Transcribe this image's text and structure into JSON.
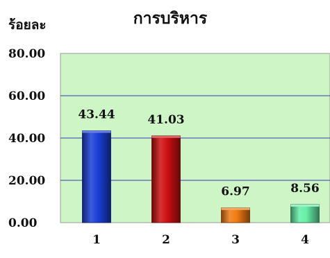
{
  "chart_data": {
    "type": "bar",
    "title": "การบริหาร",
    "ylabel": "ร้อยละ",
    "xlabel": "",
    "categories": [
      "1",
      "2",
      "3",
      "4"
    ],
    "values": [
      43.44,
      41.03,
      6.97,
      8.56
    ],
    "value_labels": [
      "43.44",
      "41.03",
      "6.97",
      "8.56"
    ],
    "yticks": [
      "0.00",
      "20.00",
      "40.00",
      "60.00",
      "80.00"
    ],
    "ylim": [
      0,
      80
    ],
    "grid": true,
    "legend": "none",
    "colors": {
      "plot_background": "#cdf5c6",
      "grid": "#3a3ab0",
      "bars": [
        "#1a3fd6",
        "#cc1010",
        "#f07a12",
        "#66eea8"
      ]
    }
  }
}
